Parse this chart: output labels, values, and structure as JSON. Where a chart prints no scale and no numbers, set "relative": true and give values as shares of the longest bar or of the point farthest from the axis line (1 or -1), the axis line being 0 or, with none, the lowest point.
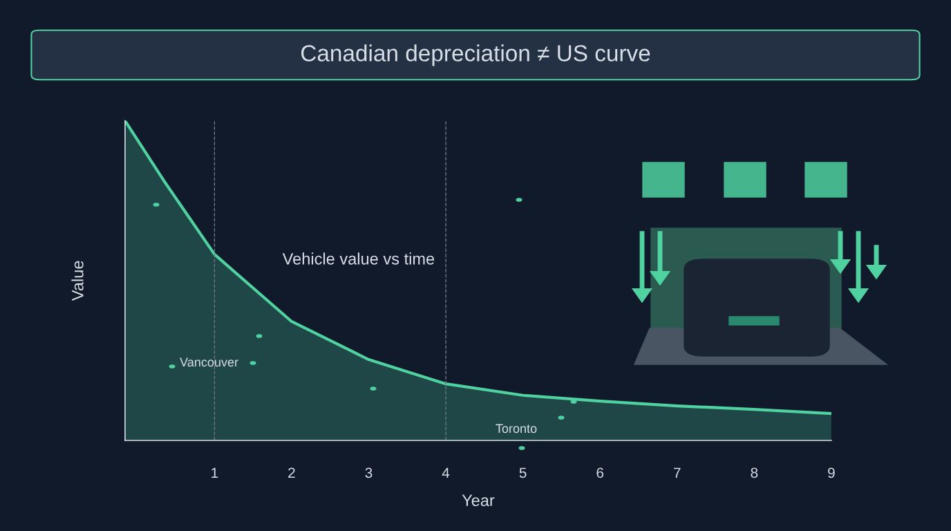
{
  "chart_data": {
    "type": "area",
    "title": "Canadian depreciation ≠ US curve",
    "xlabel": "Year",
    "ylabel": "Value",
    "relative": true,
    "x": [
      -0.16,
      0.35,
      1,
      2,
      3,
      4,
      5,
      6,
      7,
      8,
      9
    ],
    "series": [
      {
        "color": "#4fd1a0",
        "values": [
          1,
          0.81,
          0.582,
          0.372,
          0.253,
          0.177,
          0.141,
          0.123,
          0.108,
          0.097,
          0.084
        ]
      }
    ],
    "xlim": [
      -0.16,
      9
    ],
    "xticks": [
      1,
      2,
      3,
      4,
      5,
      6,
      7,
      8,
      9
    ],
    "tick_labels": "x",
    "grid": false,
    "ref_lines": [
      {
        "axis": "x",
        "value": 1,
        "line_style": "dashed",
        "color": "#6b7686"
      },
      {
        "axis": "x",
        "value": 4,
        "line_style": "dashed",
        "color": "#6b7686"
      }
    ],
    "annotations": [
      "Vehicle value vs time",
      "Vancouver",
      "Toronto"
    ]
  }
}
